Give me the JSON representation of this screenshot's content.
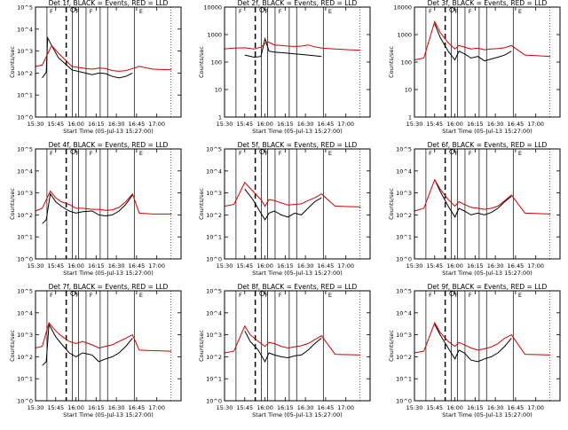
{
  "chart_data": [
    {
      "type": "line",
      "title": "Det 1f, BLACK = Events, RED = LLD",
      "xlabel": "Start Time (05-Jul-13 15:27:00)",
      "ylabel": "Counts/sec",
      "yscale": "log",
      "ytick_labels": [
        "10^0",
        "10^1",
        "10^2",
        "10^3",
        "10^4",
        "10^5"
      ],
      "ylim": [
        1,
        100000
      ],
      "xtick_labels": [
        "15:30",
        "15:45",
        "16:00",
        "16:15",
        "16:30",
        "16:45",
        "17:00"
      ],
      "xlim_minutes": [
        3,
        111
      ],
      "series": [
        {
          "name": "Events",
          "color": "#000000",
          "x": [
            8,
            11,
            12,
            15,
            20,
            30,
            40,
            45,
            50,
            55,
            60,
            65,
            70,
            75
          ],
          "y": [
            60,
            110,
            4000,
            1800,
            500,
            140,
            100,
            85,
            100,
            95,
            70,
            60,
            70,
            100
          ]
        },
        {
          "name": "LLD",
          "color": "#d40000",
          "x": [
            3,
            8,
            15,
            20,
            30,
            40,
            45,
            50,
            55,
            60,
            65,
            70,
            75,
            80,
            90,
            104
          ],
          "y": [
            200,
            230,
            1800,
            800,
            200,
            160,
            150,
            170,
            160,
            130,
            120,
            130,
            160,
            200,
            150,
            140
          ]
        }
      ]
    },
    {
      "type": "line",
      "title": "Det 2f, BLACK = Events, RED = LLD",
      "xlabel": "Start Time (05-Jul-13 15:27:00)",
      "ylabel": "Counts/sec",
      "yscale": "log",
      "ytick_labels": [
        "1",
        "10",
        "100",
        "1000",
        "10000"
      ],
      "ylim": [
        1,
        10000
      ],
      "xtick_labels": [
        "15:30",
        "15:45",
        "16:00",
        "16:15",
        "16:30",
        "16:45",
        "17:00"
      ],
      "xlim_minutes": [
        3,
        111
      ],
      "series": [
        {
          "name": "Events",
          "color": "#000000",
          "x": [
            18,
            25,
            30,
            33,
            36,
            40,
            45,
            50,
            55,
            60,
            65,
            70,
            75
          ],
          "y": [
            180,
            150,
            160,
            700,
            250,
            230,
            220,
            210,
            200,
            190,
            180,
            170,
            160
          ]
        },
        {
          "name": "LLD",
          "color": "#d40000",
          "x": [
            3,
            10,
            18,
            25,
            30,
            35,
            40,
            45,
            50,
            55,
            60,
            65,
            70,
            75,
            85,
            95,
            104
          ],
          "y": [
            300,
            320,
            330,
            300,
            350,
            550,
            420,
            400,
            380,
            370,
            380,
            420,
            360,
            320,
            300,
            280,
            270
          ]
        }
      ]
    },
    {
      "type": "line",
      "title": "Det 3f, BLACK = Events, RED = LLD",
      "xlabel": "Start Time (05-Jul-13 15:27:00)",
      "ylabel": "Counts/sec",
      "yscale": "log",
      "ytick_labels": [
        "1",
        "10",
        "100",
        "1000",
        "10000"
      ],
      "ylim": [
        1,
        10000
      ],
      "xtick_labels": [
        "15:30",
        "15:45",
        "16:00",
        "16:15",
        "16:30",
        "16:45",
        "17:00"
      ],
      "xlim_minutes": [
        3,
        111
      ],
      "series": [
        {
          "name": "Events",
          "color": "#000000",
          "x": [
            18,
            22,
            28,
            33,
            36,
            40,
            45,
            50,
            55,
            60,
            65,
            70,
            75
          ],
          "y": [
            2500,
            800,
            250,
            120,
            250,
            200,
            140,
            160,
            110,
            130,
            150,
            180,
            250
          ]
        },
        {
          "name": "LLD",
          "color": "#d40000",
          "x": [
            3,
            10,
            18,
            22,
            28,
            33,
            36,
            40,
            45,
            50,
            55,
            60,
            65,
            70,
            75,
            85,
            95,
            104
          ],
          "y": [
            120,
            140,
            3000,
            1200,
            500,
            300,
            400,
            350,
            300,
            320,
            280,
            300,
            310,
            330,
            400,
            180,
            170,
            160
          ]
        }
      ]
    },
    {
      "type": "line",
      "title": "Det 4f, BLACK = Events, RED = LLD",
      "xlabel": "Start Time (05-Jul-13 15:27:00)",
      "ylabel": "Counts/sec",
      "yscale": "log",
      "ytick_labels": [
        "10^0",
        "10^1",
        "10^2",
        "10^3",
        "10^4",
        "10^5"
      ],
      "ylim": [
        1,
        100000
      ],
      "xtick_labels": [
        "15:30",
        "15:45",
        "16:00",
        "16:15",
        "16:30",
        "16:45",
        "17:00"
      ],
      "xlim_minutes": [
        3,
        111
      ],
      "series": [
        {
          "name": "Events",
          "color": "#000000",
          "x": [
            8,
            11,
            14,
            18,
            22,
            28,
            33,
            38,
            45,
            50,
            55,
            60,
            65,
            70,
            75
          ],
          "y": [
            40,
            60,
            900,
            400,
            250,
            150,
            120,
            140,
            150,
            100,
            90,
            100,
            150,
            300,
            800
          ]
        },
        {
          "name": "LLD",
          "color": "#d40000",
          "x": [
            3,
            8,
            14,
            18,
            22,
            28,
            33,
            38,
            45,
            50,
            55,
            60,
            65,
            70,
            75,
            80,
            90,
            104
          ],
          "y": [
            150,
            200,
            1200,
            600,
            400,
            300,
            200,
            200,
            180,
            180,
            160,
            170,
            220,
            400,
            900,
            120,
            110,
            110
          ]
        }
      ]
    },
    {
      "type": "line",
      "title": "Det 5f, BLACK = Events, RED = LLD",
      "xlabel": "Start Time (05-Jul-13 15:27:00)",
      "ylabel": "Counts/sec",
      "yscale": "log",
      "ytick_labels": [
        "10^0",
        "10^1",
        "10^2",
        "10^3",
        "10^4",
        "10^5"
      ],
      "ylim": [
        1,
        100000
      ],
      "xtick_labels": [
        "15:30",
        "15:45",
        "16:00",
        "16:15",
        "16:30",
        "16:45",
        "17:00"
      ],
      "xlim_minutes": [
        3,
        111
      ],
      "series": [
        {
          "name": "Events",
          "color": "#000000",
          "x": [
            18,
            24,
            30,
            33,
            36,
            40,
            45,
            50,
            55,
            60,
            65,
            70,
            75
          ],
          "y": [
            1500,
            500,
            120,
            60,
            120,
            150,
            100,
            80,
            120,
            100,
            200,
            400,
            600
          ]
        },
        {
          "name": "LLD",
          "color": "#d40000",
          "x": [
            3,
            10,
            18,
            24,
            30,
            33,
            36,
            40,
            45,
            50,
            55,
            60,
            65,
            70,
            75,
            85,
            95,
            104
          ],
          "y": [
            250,
            300,
            3000,
            1200,
            500,
            250,
            500,
            450,
            350,
            280,
            300,
            320,
            450,
            600,
            900,
            250,
            240,
            230
          ]
        }
      ]
    },
    {
      "type": "line",
      "title": "Det 6f, BLACK = Events, RED = LLD",
      "xlabel": "Start Time (05-Jul-13 15:27:00)",
      "ylabel": "Counts/sec",
      "yscale": "log",
      "ytick_labels": [
        "10^0",
        "10^1",
        "10^2",
        "10^3",
        "10^4",
        "10^5"
      ],
      "ylim": [
        1,
        100000
      ],
      "xtick_labels": [
        "15:30",
        "15:45",
        "16:00",
        "16:15",
        "16:30",
        "16:45",
        "17:00"
      ],
      "xlim_minutes": [
        3,
        111
      ],
      "series": [
        {
          "name": "Events",
          "color": "#000000",
          "x": [
            18,
            22,
            28,
            33,
            36,
            40,
            45,
            50,
            55,
            60,
            65,
            70,
            75
          ],
          "y": [
            4000,
            1200,
            250,
            80,
            200,
            150,
            100,
            120,
            100,
            130,
            200,
            400,
            700
          ]
        },
        {
          "name": "LLD",
          "color": "#d40000",
          "x": [
            3,
            10,
            18,
            22,
            28,
            33,
            36,
            40,
            45,
            50,
            55,
            60,
            65,
            70,
            75,
            85,
            95,
            104
          ],
          "y": [
            150,
            200,
            4000,
            1500,
            500,
            250,
            400,
            300,
            220,
            200,
            180,
            200,
            250,
            450,
            800,
            120,
            115,
            110
          ]
        }
      ]
    },
    {
      "type": "line",
      "title": "Det 7f, BLACK = Events, RED = LLD",
      "xlabel": "Start Time (05-Jul-13 15:27:00)",
      "ylabel": "Counts/sec",
      "yscale": "log",
      "ytick_labels": [
        "10^0",
        "10^1",
        "10^2",
        "10^3",
        "10^4",
        "10^5"
      ],
      "ylim": [
        1,
        100000
      ],
      "xtick_labels": [
        "15:30",
        "15:45",
        "16:00",
        "16:15",
        "16:30",
        "16:45",
        "17:00"
      ],
      "xlim_minutes": [
        3,
        111
      ],
      "series": [
        {
          "name": "Events",
          "color": "#000000",
          "x": [
            8,
            11,
            13,
            18,
            22,
            28,
            33,
            38,
            45,
            50,
            55,
            60,
            65,
            70,
            75
          ],
          "y": [
            40,
            60,
            3000,
            800,
            400,
            150,
            100,
            150,
            120,
            60,
            80,
            100,
            150,
            300,
            700
          ]
        },
        {
          "name": "LLD",
          "color": "#d40000",
          "x": [
            3,
            8,
            13,
            18,
            22,
            28,
            33,
            38,
            45,
            50,
            55,
            60,
            65,
            70,
            75,
            80,
            90,
            104
          ],
          "y": [
            250,
            300,
            3500,
            1500,
            900,
            500,
            400,
            500,
            350,
            250,
            300,
            350,
            500,
            700,
            1000,
            200,
            190,
            180
          ]
        }
      ]
    },
    {
      "type": "line",
      "title": "Det 8f, BLACK = Events, RED = LLD",
      "xlabel": "Start Time (05-Jul-13 15:27:00)",
      "ylabel": "Counts/sec",
      "yscale": "log",
      "ytick_labels": [
        "10^0",
        "10^1",
        "10^2",
        "10^3",
        "10^4",
        "10^5"
      ],
      "ylim": [
        1,
        100000
      ],
      "xtick_labels": [
        "15:30",
        "15:45",
        "16:00",
        "16:15",
        "16:30",
        "16:45",
        "17:00"
      ],
      "xlim_minutes": [
        3,
        111
      ],
      "series": [
        {
          "name": "Events",
          "color": "#000000",
          "x": [
            18,
            22,
            28,
            33,
            36,
            40,
            45,
            50,
            55,
            60,
            65,
            70,
            75
          ],
          "y": [
            1500,
            500,
            200,
            60,
            150,
            120,
            100,
            90,
            110,
            120,
            200,
            400,
            700
          ]
        },
        {
          "name": "LLD",
          "color": "#d40000",
          "x": [
            3,
            10,
            18,
            22,
            28,
            33,
            36,
            40,
            45,
            50,
            55,
            60,
            65,
            70,
            75,
            85,
            95,
            104
          ],
          "y": [
            150,
            180,
            2500,
            1000,
            500,
            300,
            450,
            400,
            300,
            250,
            280,
            320,
            400,
            600,
            900,
            130,
            125,
            120
          ]
        }
      ]
    },
    {
      "type": "line",
      "title": "Det 9f, BLACK = Events, RED = LLD",
      "xlabel": "Start Time (05-Jul-13 15:27:00)",
      "ylabel": "Counts/sec",
      "yscale": "log",
      "ytick_labels": [
        "10^0",
        "10^1",
        "10^2",
        "10^3",
        "10^4",
        "10^5"
      ],
      "ylim": [
        1,
        100000
      ],
      "xtick_labels": [
        "15:30",
        "15:45",
        "16:00",
        "16:15",
        "16:30",
        "16:45",
        "17:00"
      ],
      "xlim_minutes": [
        3,
        111
      ],
      "series": [
        {
          "name": "Events",
          "color": "#000000",
          "x": [
            18,
            22,
            28,
            33,
            36,
            40,
            45,
            50,
            55,
            60,
            65,
            70,
            75
          ],
          "y": [
            3000,
            1000,
            250,
            80,
            200,
            150,
            70,
            60,
            80,
            100,
            150,
            300,
            700
          ]
        },
        {
          "name": "LLD",
          "color": "#d40000",
          "x": [
            3,
            10,
            18,
            22,
            28,
            33,
            36,
            40,
            45,
            50,
            55,
            60,
            65,
            70,
            75,
            85,
            95,
            104
          ],
          "y": [
            150,
            180,
            3500,
            1300,
            500,
            300,
            450,
            350,
            250,
            200,
            230,
            280,
            400,
            700,
            1000,
            130,
            125,
            120
          ]
        }
      ]
    }
  ],
  "colors": {
    "events": "#000000",
    "lld": "#d40000",
    "axis": "#000000",
    "background": "#ffffff"
  }
}
